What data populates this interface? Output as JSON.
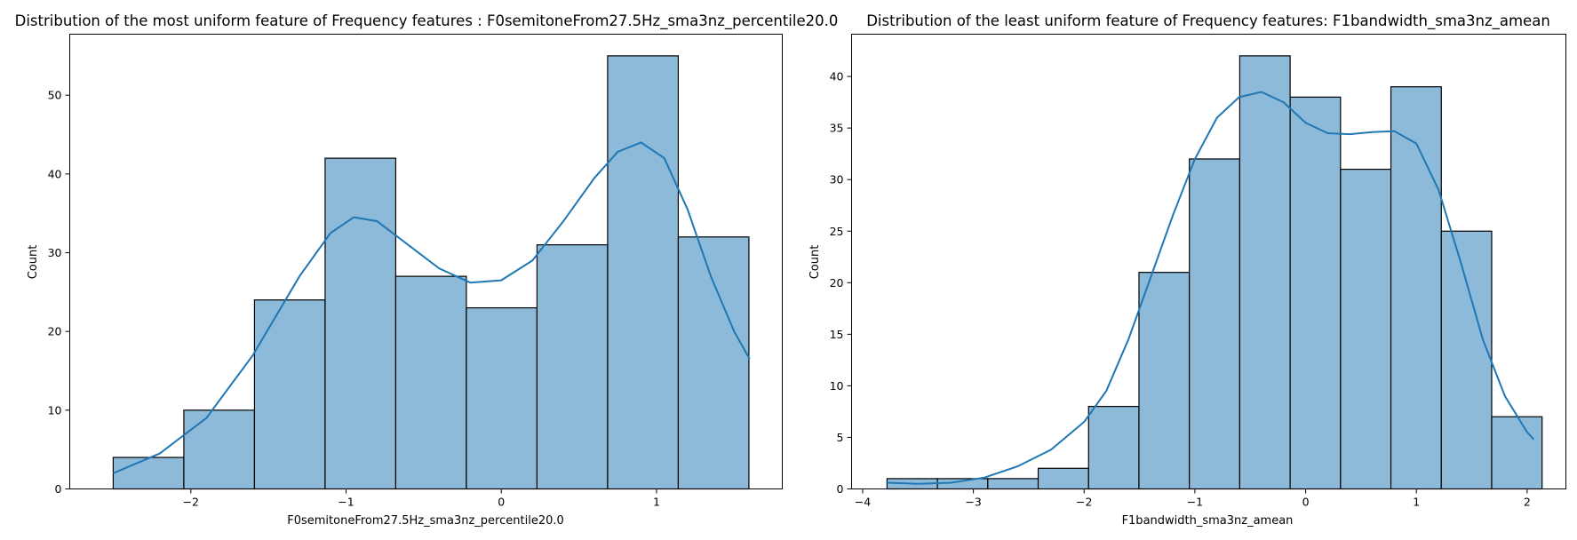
{
  "chart_data": [
    {
      "type": "histogram",
      "title": "Distribution of the most uniform feature of Frequency features : F0semitoneFrom27.5Hz_sma3nz_percentile20.0",
      "xlabel": "F0semitoneFrom27.5Hz_sma3nz_percentile20.0",
      "ylabel": "Count",
      "xlim": [
        -2.78,
        1.81
      ],
      "ylim": [
        0,
        57.75
      ],
      "xticks": [
        -2,
        -1,
        0,
        1
      ],
      "yticks": [
        0,
        10,
        20,
        30,
        40,
        50
      ],
      "bin_edges": [
        -2.5,
        -2.045,
        -1.59,
        -1.135,
        -0.68,
        -0.225,
        0.23,
        0.685,
        1.14,
        1.595
      ],
      "counts": [
        4,
        10,
        24,
        42,
        27,
        23,
        31,
        55,
        32
      ],
      "kde": {
        "x": [
          -2.5,
          -2.2,
          -1.9,
          -1.6,
          -1.3,
          -1.1,
          -0.95,
          -0.8,
          -0.6,
          -0.4,
          -0.2,
          0.0,
          0.2,
          0.4,
          0.6,
          0.75,
          0.9,
          1.05,
          1.2,
          1.35,
          1.5,
          1.6
        ],
        "y": [
          2.0,
          4.5,
          9.0,
          17.0,
          27.0,
          32.5,
          34.5,
          34.0,
          31.0,
          28.0,
          26.2,
          26.5,
          29.0,
          34.0,
          39.5,
          42.8,
          44.0,
          42.0,
          35.5,
          27.0,
          20.0,
          16.5
        ]
      },
      "bar_color": "#8ebad9",
      "line_color": "#1f77b4"
    },
    {
      "type": "histogram",
      "title": "Distribution of the least uniform feature of Frequency features: F1bandwidth_sma3nz_amean",
      "xlabel": "F1bandwidth_sma3nz_amean",
      "ylabel": "Count",
      "xlim": [
        -4.1,
        2.35
      ],
      "ylim": [
        0,
        44.1
      ],
      "xticks": [
        -4,
        -3,
        -2,
        -1,
        0,
        1,
        2
      ],
      "yticks": [
        0,
        5,
        10,
        15,
        20,
        25,
        30,
        35,
        40
      ],
      "bin_edges": [
        -3.78,
        -3.325,
        -2.87,
        -2.415,
        -1.96,
        -1.505,
        -1.05,
        -0.595,
        -0.14,
        0.315,
        0.77,
        1.225,
        1.68,
        2.135
      ],
      "counts": [
        1,
        1,
        1,
        2,
        8,
        21,
        32,
        42,
        38,
        31,
        39,
        25,
        7
      ],
      "kde": {
        "x": [
          -3.78,
          -3.5,
          -3.2,
          -2.9,
          -2.6,
          -2.3,
          -2.0,
          -1.8,
          -1.6,
          -1.4,
          -1.2,
          -1.0,
          -0.8,
          -0.6,
          -0.4,
          -0.2,
          0.0,
          0.2,
          0.4,
          0.6,
          0.8,
          1.0,
          1.2,
          1.4,
          1.6,
          1.8,
          2.0,
          2.06
        ],
        "y": [
          0.6,
          0.5,
          0.6,
          1.1,
          2.2,
          3.8,
          6.5,
          9.5,
          14.5,
          20.5,
          26.5,
          32.0,
          36.0,
          38.0,
          38.5,
          37.5,
          35.5,
          34.5,
          34.4,
          34.6,
          34.7,
          33.5,
          29.0,
          22.0,
          14.5,
          9.0,
          5.5,
          4.8
        ]
      },
      "bar_color": "#8ebad9",
      "line_color": "#1f77b4"
    }
  ]
}
